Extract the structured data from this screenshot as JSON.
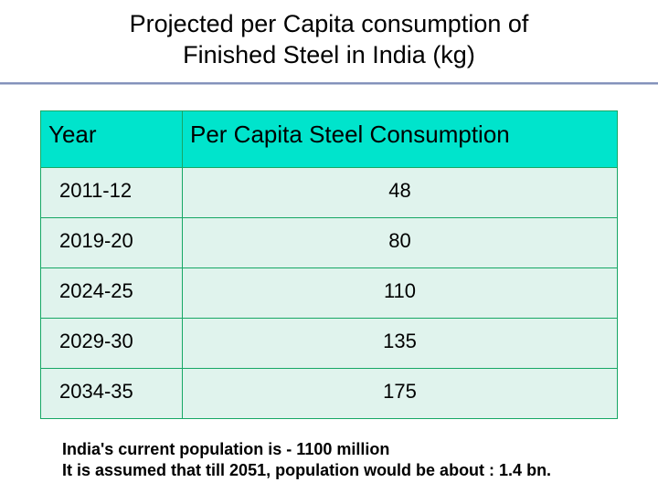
{
  "title": {
    "line1": "Projected per Capita consumption of",
    "line2": "Finished Steel in India (kg)"
  },
  "table": {
    "type": "table",
    "header_bg": "#00e4cc",
    "row_bg": "#e0f3ed",
    "border_color": "#16a765",
    "columns": [
      "Year",
      "Per Capita Steel Consumption"
    ],
    "rows": [
      {
        "year": "2011-12",
        "value": "48"
      },
      {
        "year": "2019-20",
        "value": "80"
      },
      {
        "year": "2024-25",
        "value": "110"
      },
      {
        "year": "2029-30",
        "value": "135"
      },
      {
        "year": "2034-35",
        "value": "175"
      }
    ],
    "header_fontsize": 26,
    "cell_fontsize": 22
  },
  "footnote": {
    "line1": "India's current population is -  1100 million",
    "line2": "It is assumed that till 2051, population would be about : 1.4 bn."
  }
}
